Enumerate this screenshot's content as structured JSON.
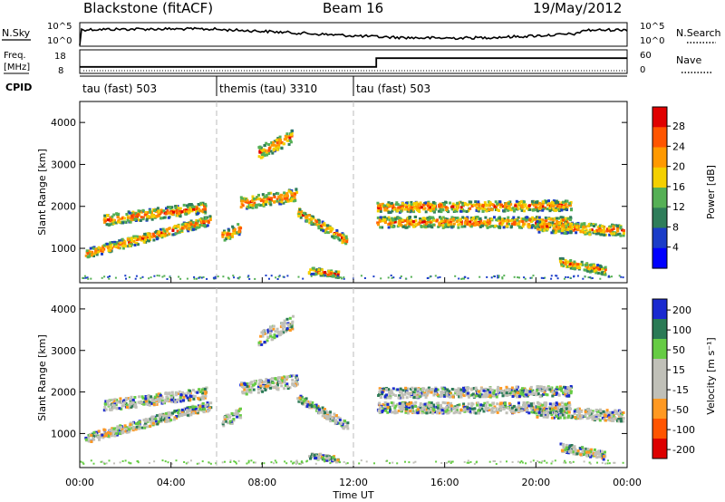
{
  "header": {
    "station": "Blackstone (fitACF)",
    "beam": "Beam 16",
    "date": "19/May/2012"
  },
  "strips": {
    "noise_left_label": "N.Sky",
    "noise_right_label": "N.Search",
    "noise_ticks": [
      "10^5",
      "10^0"
    ],
    "noise_ticks_right": [
      "10^5",
      "10^0"
    ],
    "freq_label_top": "Freq.",
    "freq_label_unit": "[MHz]",
    "freq_ticks": [
      "18",
      "8"
    ],
    "nave_label": "Nave",
    "nave_ticks": [
      "60",
      "0"
    ],
    "cpid_label": "CPID",
    "cpid_segments": [
      {
        "start_hour": 0,
        "label": "tau (fast) 503"
      },
      {
        "start_hour": 6,
        "label": "themis (tau) 3310"
      },
      {
        "start_hour": 12,
        "label": "tau (fast) 503"
      }
    ],
    "freq_series": {
      "hours": [
        0,
        13,
        13,
        24
      ],
      "values": [
        10,
        10,
        16,
        16
      ]
    }
  },
  "chart_data": [
    {
      "type": "heatmap",
      "title": "",
      "xlabel": "",
      "ylabel": "Slant Range [km]",
      "xlim": [
        0,
        24
      ],
      "ylim": [
        180,
        4500
      ],
      "x_ticks": [
        "00:00",
        "04:00",
        "08:00",
        "12:00",
        "16:00",
        "20:00",
        "00:00"
      ],
      "y_ticks": [
        1000,
        2000,
        3000,
        4000
      ],
      "colorbar": {
        "label": "Power [dB]",
        "ticks": [
          "28",
          "24",
          "20",
          "16",
          "12",
          "8",
          "4"
        ],
        "colors": [
          "#e00000",
          "#ff5500",
          "#ff9900",
          "#f4d000",
          "#55b055",
          "#2e7d5a",
          "#1a3cc8",
          "#0000ff"
        ]
      }
    },
    {
      "type": "heatmap",
      "title": "",
      "xlabel": "Time UT",
      "ylabel": "Slant Range [km]",
      "xlim": [
        0,
        24
      ],
      "ylim": [
        180,
        4500
      ],
      "x_ticks": [
        "00:00",
        "04:00",
        "08:00",
        "12:00",
        "16:00",
        "20:00",
        "00:00"
      ],
      "y_ticks": [
        1000,
        2000,
        3000,
        4000
      ],
      "colorbar": {
        "label": "Velocity [m s⁻¹]",
        "ticks": [
          "200",
          "100",
          "50",
          "15",
          "-15",
          "-50",
          "-100",
          "-200"
        ],
        "colors": [
          "#1a2ad0",
          "#2a7a55",
          "#66cc44",
          "#c0c0b8",
          "#c0c0b8",
          "#ff9922",
          "#ff5500",
          "#dd0000"
        ]
      }
    }
  ]
}
